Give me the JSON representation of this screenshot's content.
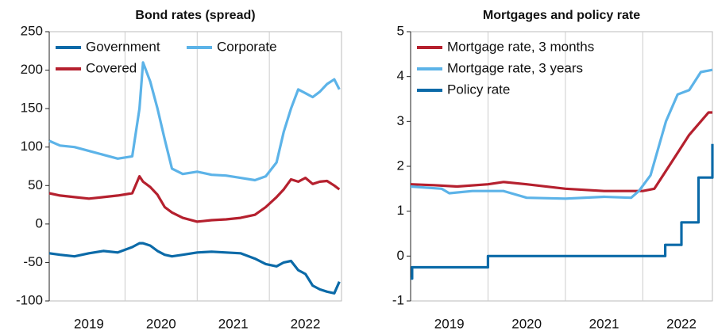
{
  "chart_data": [
    {
      "type": "line",
      "title": "Bond rates (spread)",
      "x": [
        2018.95,
        2019.1,
        2019.3,
        2019.5,
        2019.7,
        2019.9,
        2020.1,
        2020.2,
        2020.25,
        2020.35,
        2020.45,
        2020.55,
        2020.65,
        2020.8,
        2021.0,
        2021.2,
        2021.4,
        2021.6,
        2021.8,
        2021.95,
        2022.1,
        2022.2,
        2022.3,
        2022.4,
        2022.5,
        2022.6,
        2022.7,
        2022.8,
        2022.9,
        2022.97
      ],
      "series": [
        {
          "name": "Government",
          "color": "#0b6aa8",
          "values": [
            -38,
            -40,
            -42,
            -38,
            -35,
            -37,
            -30,
            -25,
            -25,
            -28,
            -35,
            -40,
            -42,
            -40,
            -37,
            -36,
            -37,
            -38,
            -45,
            -52,
            -55,
            -50,
            -48,
            -60,
            -65,
            -80,
            -85,
            -88,
            -90,
            -75
          ]
        },
        {
          "name": "Corporate",
          "color": "#5cb3e8",
          "values": [
            108,
            102,
            100,
            95,
            90,
            85,
            88,
            150,
            210,
            185,
            150,
            110,
            72,
            65,
            68,
            64,
            63,
            60,
            57,
            62,
            80,
            120,
            150,
            175,
            170,
            165,
            172,
            182,
            188,
            175
          ]
        },
        {
          "name": "Covered",
          "color": "#b5202e",
          "values": [
            40,
            37,
            35,
            33,
            35,
            37,
            40,
            62,
            55,
            48,
            38,
            22,
            15,
            8,
            3,
            5,
            6,
            8,
            12,
            22,
            35,
            45,
            58,
            55,
            60,
            52,
            55,
            56,
            50,
            45
          ]
        }
      ],
      "xlim": [
        2018.95,
        2023.0
      ],
      "xticks": [
        {
          "value": 2019.5,
          "label": "2019"
        },
        {
          "value": 2020.5,
          "label": "2020"
        },
        {
          "value": 2021.5,
          "label": "2021"
        },
        {
          "value": 2022.5,
          "label": "2022"
        }
      ],
      "x_gridlines": [
        2020,
        2021,
        2022
      ],
      "ylim": [
        -100,
        250
      ],
      "yticks": [
        -100,
        -50,
        0,
        50,
        100,
        150,
        200,
        250
      ]
    },
    {
      "type": "step",
      "title": "Mortgages and policy rate",
      "series": [
        {
          "name": "Mortgage rate, 3 months",
          "color": "#b5202e",
          "x": [
            2019.0,
            2019.3,
            2019.6,
            2020.0,
            2020.2,
            2020.5,
            2021.0,
            2021.5,
            2022.0,
            2022.15,
            2022.3,
            2022.45,
            2022.6,
            2022.75,
            2022.85,
            2022.9
          ],
          "values": [
            1.6,
            1.58,
            1.55,
            1.6,
            1.65,
            1.6,
            1.5,
            1.45,
            1.45,
            1.5,
            1.9,
            2.3,
            2.7,
            3.0,
            3.2,
            3.2
          ]
        },
        {
          "name": "Mortgage rate, 3 years",
          "color": "#5cb3e8",
          "x": [
            2019.0,
            2019.4,
            2019.5,
            2019.8,
            2020.2,
            2020.5,
            2021.0,
            2021.5,
            2021.85,
            2021.95,
            2022.1,
            2022.2,
            2022.3,
            2022.45,
            2022.6,
            2022.75,
            2022.9
          ],
          "values": [
            1.55,
            1.5,
            1.4,
            1.45,
            1.45,
            1.3,
            1.28,
            1.32,
            1.3,
            1.45,
            1.8,
            2.4,
            3.0,
            3.6,
            3.7,
            4.1,
            4.15
          ]
        },
        {
          "name": "Policy rate",
          "color": "#0b6aa8",
          "x": [
            2019.0,
            2019.02,
            2019.02,
            2020.0,
            2020.0,
            2022.29,
            2022.29,
            2022.5,
            2022.5,
            2022.72,
            2022.72,
            2022.9,
            2022.9
          ],
          "values": [
            -0.5,
            -0.5,
            -0.25,
            -0.25,
            0,
            0,
            0.25,
            0.25,
            0.75,
            0.75,
            1.75,
            1.75,
            2.5
          ]
        }
      ],
      "xlim": [
        2019.0,
        2022.9
      ],
      "xticks": [
        {
          "value": 2019.5,
          "label": "2019"
        },
        {
          "value": 2020.5,
          "label": "2020"
        },
        {
          "value": 2021.5,
          "label": "2021"
        },
        {
          "value": 2022.5,
          "label": "2022"
        }
      ],
      "x_gridlines": [
        2020,
        2021,
        2022
      ],
      "ylim": [
        -1,
        5
      ],
      "yticks": [
        -1,
        0,
        1,
        2,
        3,
        4,
        5
      ]
    }
  ]
}
